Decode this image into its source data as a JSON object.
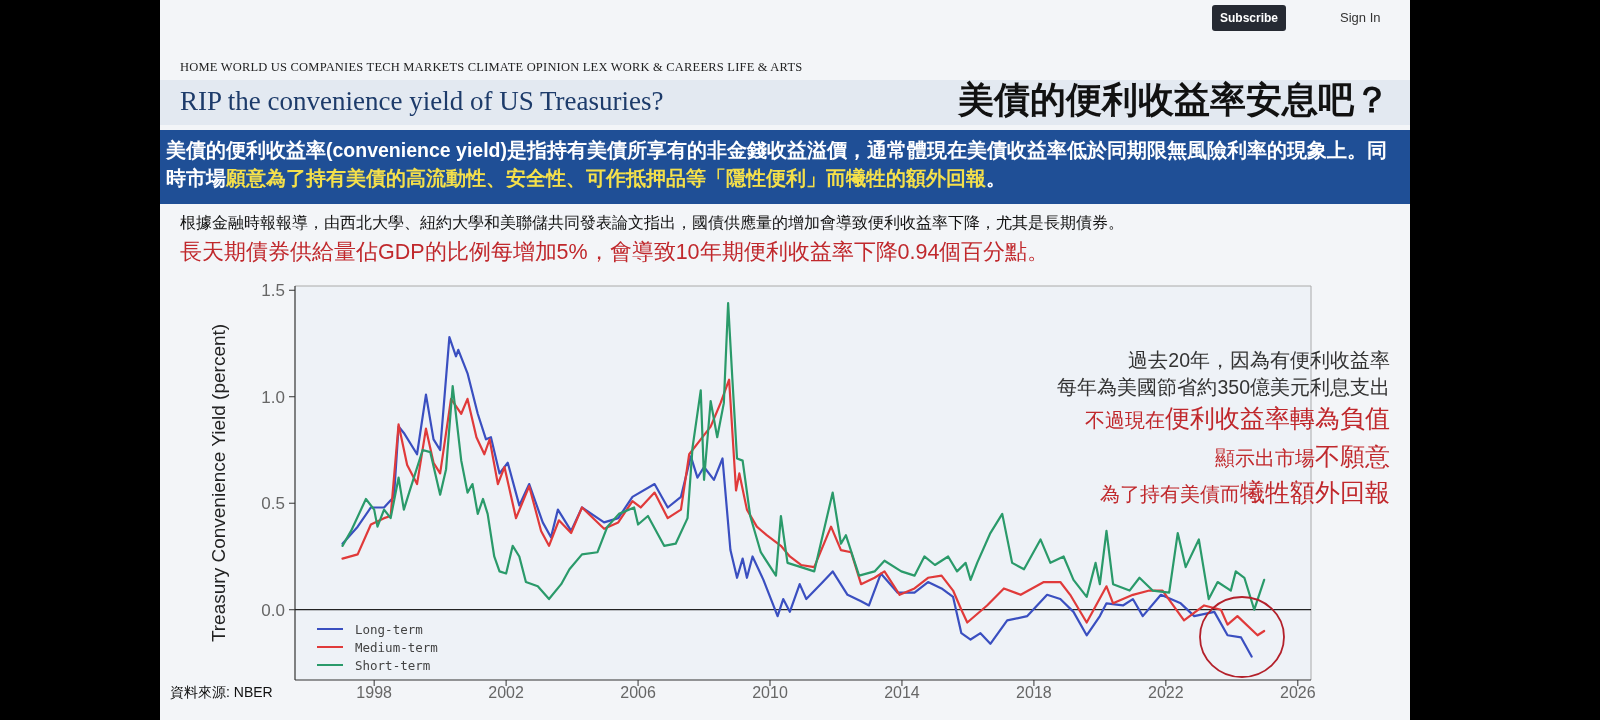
{
  "chart_data": {
    "type": "line",
    "title": "RIP the convenience yield of US Treasuries?",
    "subtitle": "美債的便利收益率安息吧？",
    "ylabel": "Treasury Convenience Yield (percent)",
    "annotations": [
      "HOME   WORLD   US   COMPANIES   TECH   MARKETS   CLIMATE   OPINION   LEX   WORK & CAREERS   LIFE & ARTS",
      "Subscribe",
      "Sign In",
      "美債的便利收益率(convenience yield)是指持有美債所享有的非金錢收益溢價，通常體現在美債收益率低於同期限無風險利率的現象上。同時市場",
      "願意為了持有美債的高流動性、安全性、可作抵押品等「隱性便利」而犧牲的額外回報",
      "。",
      "根據金融時報報導，由西北大學、紐約大學和美聯儲共同發表論文指出，國債供應量的增加會導致便利收益率下降，尤其是長期債券。",
      "長天期債券供給量佔GDP的比例每增加5%，會導致10年期便利收益率下降0.94個百分點。",
      "過去20年，因為有便利收益率",
      "每年為美國節省約350億美元利息支出",
      "不過現在",
      "便利收益率轉為負值",
      "顯示出市場",
      "不願意",
      "為了持有美債而",
      "犧牲額外回報",
      "資料來源: NBER"
    ],
    "xlim": [
      1995.6,
      2026.4
    ],
    "xticks": [
      1998,
      2002,
      2006,
      2010,
      2014,
      2018,
      2022,
      2026
    ],
    "ylim": [
      -0.33,
      1.52
    ],
    "yticks": [
      {
        "value": 0,
        "label": "0.0"
      },
      0.5,
      {
        "value": 1,
        "label": "1.0"
      },
      1.5
    ],
    "ref_lines": [
      {
        "axis": "y",
        "value": 0,
        "label": null,
        "color": "#222222"
      }
    ],
    "grid": false,
    "legend": "bottom left",
    "line_style": "solid",
    "marker": "none",
    "series": [
      {
        "name": "Long-term",
        "color": "#3a4fc0",
        "x": [
          1997.04,
          1997.5,
          1997.9,
          1998.3,
          1998.6,
          1998.74,
          1998.9,
          1999.3,
          1999.57,
          1999.8,
          2000.0,
          2000.28,
          2000.48,
          2000.55,
          2000.83,
          2001.14,
          2001.39,
          2001.54,
          2001.8,
          2002.05,
          2002.4,
          2002.7,
          2003.11,
          2003.36,
          2003.57,
          2003.97,
          2004.3,
          2004.97,
          2005.4,
          2005.83,
          2006.5,
          2006.9,
          2007.3,
          2007.6,
          2007.8,
          2008.0,
          2008.3,
          2008.56,
          2008.8,
          2009.0,
          2009.17,
          2009.3,
          2009.47,
          2009.8,
          2010.23,
          2010.4,
          2010.6,
          2010.9,
          2011.1,
          2011.6,
          2011.9,
          2012.35,
          2012.76,
          2013.0,
          2013.36,
          2013.87,
          2014.38,
          2014.79,
          2015.2,
          2015.55,
          2015.8,
          2016.08,
          2016.38,
          2016.68,
          2017.19,
          2017.8,
          2018.4,
          2018.8,
          2019.2,
          2019.6,
          2020.0,
          2020.2,
          2020.7,
          2021.0,
          2021.3,
          2021.85,
          2022.45,
          2022.86,
          2023.47,
          2023.87,
          2024.28,
          2024.6
        ],
        "values": [
          0.31,
          0.39,
          0.48,
          0.48,
          0.53,
          0.86,
          0.83,
          0.73,
          1.01,
          0.8,
          0.75,
          1.28,
          1.19,
          1.22,
          1.11,
          0.92,
          0.8,
          0.81,
          0.64,
          0.69,
          0.49,
          0.59,
          0.41,
          0.34,
          0.47,
          0.37,
          0.48,
          0.41,
          0.43,
          0.53,
          0.59,
          0.48,
          0.53,
          0.72,
          0.62,
          0.67,
          0.61,
          0.71,
          0.28,
          0.15,
          0.24,
          0.15,
          0.25,
          0.14,
          -0.03,
          0.05,
          -0.01,
          0.12,
          0.05,
          0.13,
          0.18,
          0.07,
          0.04,
          0.02,
          0.17,
          0.08,
          0.08,
          0.13,
          0.1,
          0.06,
          -0.11,
          -0.14,
          -0.11,
          -0.16,
          -0.05,
          -0.03,
          0.07,
          0.05,
          -0.01,
          -0.12,
          -0.03,
          0.03,
          0.02,
          0.05,
          -0.03,
          0.07,
          0.03,
          -0.03,
          -0.01,
          -0.12,
          -0.13,
          -0.22
        ]
      },
      {
        "name": "Medium-term",
        "color": "#e03a3a",
        "x": [
          1997.04,
          1997.5,
          1997.9,
          1998.3,
          1998.5,
          1998.74,
          1999.0,
          1999.3,
          1999.57,
          1999.8,
          2000.0,
          2000.33,
          2000.64,
          2000.83,
          2001.1,
          2001.34,
          2001.5,
          2001.75,
          2001.95,
          2002.3,
          2002.7,
          2003.06,
          2003.3,
          2003.6,
          2003.97,
          2004.3,
          2004.97,
          2005.4,
          2005.83,
          2006.08,
          2006.5,
          2006.9,
          2007.3,
          2007.55,
          2007.9,
          2008.2,
          2008.5,
          2008.76,
          2008.97,
          2009.07,
          2009.3,
          2009.6,
          2009.9,
          2010.33,
          2010.6,
          2010.94,
          2011.34,
          2011.85,
          2012.15,
          2012.46,
          2012.76,
          2013.17,
          2013.47,
          2013.93,
          2014.38,
          2014.79,
          2015.2,
          2015.55,
          2015.8,
          2015.98,
          2016.58,
          2017.09,
          2017.6,
          2018.3,
          2018.8,
          2019.1,
          2019.6,
          2020.2,
          2020.4,
          2021.0,
          2021.5,
          2021.9,
          2022.55,
          2023.16,
          2023.67,
          2023.87,
          2024.17,
          2024.78,
          2024.98
        ],
        "values": [
          0.24,
          0.26,
          0.4,
          0.43,
          0.44,
          0.87,
          0.68,
          0.59,
          0.85,
          0.69,
          0.64,
          0.99,
          0.92,
          0.99,
          0.81,
          0.73,
          0.8,
          0.59,
          0.67,
          0.43,
          0.58,
          0.37,
          0.3,
          0.42,
          0.36,
          0.48,
          0.38,
          0.41,
          0.51,
          0.48,
          0.55,
          0.43,
          0.47,
          0.73,
          0.8,
          0.86,
          0.97,
          1.08,
          0.56,
          0.64,
          0.47,
          0.39,
          0.35,
          0.3,
          0.25,
          0.21,
          0.2,
          0.39,
          0.28,
          0.27,
          0.12,
          0.15,
          0.18,
          0.07,
          0.1,
          0.15,
          0.16,
          0.09,
          0.0,
          -0.06,
          0.02,
          0.1,
          0.07,
          0.13,
          0.13,
          0.07,
          -0.06,
          0.11,
          0.03,
          0.07,
          0.09,
          0.09,
          -0.05,
          0.02,
          0.0,
          -0.07,
          -0.03,
          -0.12,
          -0.1
        ]
      },
      {
        "name": "Short-term",
        "color": "#2a9a6a",
        "x": [
          1997.04,
          1997.3,
          1997.75,
          1998.0,
          1998.1,
          1998.3,
          1998.5,
          1998.74,
          1998.9,
          1999.06,
          1999.47,
          1999.7,
          2000.0,
          2000.18,
          2000.38,
          2000.64,
          2000.83,
          2000.98,
          2001.14,
          2001.3,
          2001.44,
          2001.64,
          2001.8,
          2002.0,
          2002.2,
          2002.4,
          2002.6,
          2002.96,
          2003.3,
          2003.67,
          2003.92,
          2004.3,
          2004.77,
          2005.07,
          2005.42,
          2005.88,
          2006.0,
          2006.3,
          2006.79,
          2007.14,
          2007.5,
          2007.65,
          2007.9,
          2008.0,
          2008.2,
          2008.4,
          2008.6,
          2008.73,
          2008.86,
          2009.0,
          2009.17,
          2009.4,
          2009.72,
          2010.18,
          2010.33,
          2010.53,
          2010.94,
          2011.34,
          2011.9,
          2012.15,
          2012.3,
          2012.7,
          2013.17,
          2013.47,
          2013.98,
          2014.38,
          2014.68,
          2015.0,
          2015.4,
          2015.67,
          2015.93,
          2016.08,
          2016.28,
          2016.68,
          2017.04,
          2017.34,
          2017.7,
          2018.2,
          2018.5,
          2018.9,
          2019.2,
          2019.6,
          2019.87,
          2020.0,
          2020.2,
          2020.4,
          2020.9,
          2021.2,
          2021.6,
          2022.1,
          2022.36,
          2022.6,
          2023.0,
          2023.3,
          2023.57,
          2023.97,
          2024.12,
          2024.38,
          2024.68,
          2024.98
        ],
        "values": [
          0.3,
          0.37,
          0.52,
          0.47,
          0.39,
          0.47,
          0.43,
          0.62,
          0.47,
          0.55,
          0.75,
          0.74,
          0.54,
          0.66,
          1.05,
          0.7,
          0.55,
          0.59,
          0.45,
          0.52,
          0.45,
          0.25,
          0.18,
          0.17,
          0.3,
          0.25,
          0.13,
          0.11,
          0.05,
          0.12,
          0.19,
          0.26,
          0.27,
          0.39,
          0.45,
          0.48,
          0.4,
          0.44,
          0.3,
          0.31,
          0.43,
          0.76,
          1.03,
          0.61,
          0.98,
          0.81,
          0.97,
          1.44,
          1.08,
          0.71,
          0.7,
          0.44,
          0.27,
          0.16,
          0.44,
          0.22,
          0.2,
          0.18,
          0.55,
          0.31,
          0.35,
          0.16,
          0.18,
          0.23,
          0.18,
          0.16,
          0.25,
          0.21,
          0.25,
          0.18,
          0.22,
          0.14,
          0.22,
          0.36,
          0.45,
          0.22,
          0.19,
          0.33,
          0.22,
          0.25,
          0.14,
          0.06,
          0.22,
          0.12,
          0.37,
          0.12,
          0.09,
          0.15,
          0.09,
          0.08,
          0.36,
          0.2,
          0.33,
          0.05,
          0.13,
          0.09,
          0.18,
          0.15,
          0.0,
          0.14
        ]
      }
    ]
  }
}
